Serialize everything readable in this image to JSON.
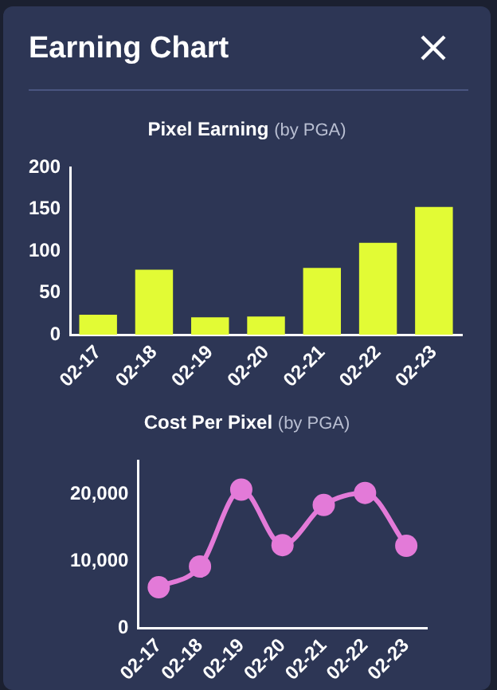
{
  "chart_data": [
    {
      "type": "bar",
      "title": "Pixel Earning",
      "subtitle": "(by PGA)",
      "annotations": [
        "Earning Chart"
      ],
      "categories": [
        "02-17",
        "02-18",
        "02-19",
        "02-20",
        "02-21",
        "02-22",
        "02-23"
      ],
      "series": [
        {
          "color": "#e2fb35",
          "values": [
            24,
            78,
            21,
            22,
            80,
            110,
            153
          ]
        }
      ],
      "ylim": [
        0,
        200
      ],
      "yticks": [
        0,
        50,
        100,
        150,
        200
      ],
      "grid": false,
      "legend": false
    },
    {
      "type": "line",
      "title": "Cost Per Pixel",
      "subtitle": "(by PGA)",
      "categories": [
        "02-17",
        "02-18",
        "02-19",
        "02-20",
        "02-21",
        "02-22",
        "02-23"
      ],
      "series": [
        {
          "color": "#e37ad8",
          "values": [
            6100,
            9200,
            20700,
            12400,
            18400,
            20200,
            12300
          ]
        }
      ],
      "ylim": [
        0,
        25000
      ],
      "yticks": [
        0,
        {
          "value": 10000,
          "label": "10,000"
        },
        {
          "value": 20000,
          "label": "20,000"
        }
      ],
      "grid": false,
      "legend": false,
      "marker": "circle"
    }
  ]
}
